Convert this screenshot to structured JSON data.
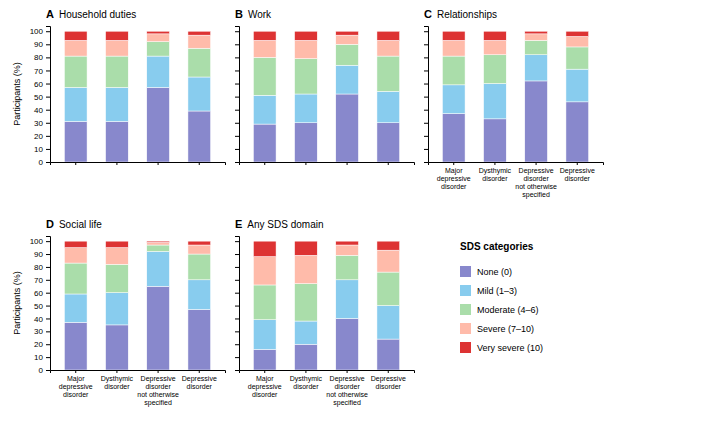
{
  "chart_data": [
    {
      "type": "bar",
      "stacked": true,
      "title": "Household duties",
      "annotations": [
        "A"
      ],
      "ylabel": "Participants (%)",
      "tick_labels": "y",
      "categories": [
        null,
        null,
        null,
        null
      ],
      "ylim": [
        0,
        104
      ],
      "yticks": [
        0,
        10,
        20,
        30,
        40,
        50,
        60,
        70,
        80,
        90,
        100
      ],
      "series": [
        {
          "name": "None (0)",
          "color": "#8888cc",
          "values": [
            31,
            31,
            57,
            39
          ]
        },
        {
          "name": "Mild (1–3)",
          "color": "#88ccee",
          "values": [
            26,
            26,
            24,
            26
          ]
        },
        {
          "name": "Moderate (4–6)",
          "color": "#aaddaa",
          "values": [
            24,
            24,
            11,
            22
          ]
        },
        {
          "name": "Severe (7–10)",
          "color": "#ffbbaa",
          "values": [
            12,
            12,
            6,
            10
          ]
        },
        {
          "name": "Very severe (10)",
          "color": "#dd3333",
          "values": [
            7,
            7,
            2,
            3
          ]
        }
      ]
    },
    {
      "type": "bar",
      "stacked": true,
      "title": "Work",
      "annotations": [
        "B"
      ],
      "tick_labels": false,
      "categories": [
        null,
        null,
        null,
        null
      ],
      "ylim": [
        0,
        104
      ],
      "yticks": [
        0,
        10,
        20,
        30,
        40,
        50,
        60,
        70,
        80,
        90,
        100
      ],
      "series": [
        {
          "name": "None (0)",
          "color": "#8888cc",
          "values": [
            29,
            30,
            52,
            30
          ]
        },
        {
          "name": "Mild (1–3)",
          "color": "#88ccee",
          "values": [
            22,
            22,
            22,
            24
          ]
        },
        {
          "name": "Moderate (4–6)",
          "color": "#aaddaa",
          "values": [
            29,
            27,
            16,
            27
          ]
        },
        {
          "name": "Severe (7–10)",
          "color": "#ffbbaa",
          "values": [
            13,
            14,
            7,
            12
          ]
        },
        {
          "name": "Very severe (10)",
          "color": "#dd3333",
          "values": [
            7,
            7,
            3,
            7
          ]
        }
      ]
    },
    {
      "type": "bar",
      "stacked": true,
      "title": "Relationships",
      "annotations": [
        "C"
      ],
      "tick_labels": "x",
      "categories": [
        "Major\ndepressive\ndisorder",
        "Dysthymic\ndisorder",
        "Depressive\ndisorder\nnot otherwise\nspecified",
        "Depressive\ndisorder"
      ],
      "ylim": [
        0,
        104
      ],
      "yticks": [
        0,
        10,
        20,
        30,
        40,
        50,
        60,
        70,
        80,
        90,
        100
      ],
      "series": [
        {
          "name": "None (0)",
          "color": "#8888cc",
          "values": [
            37,
            33,
            62,
            46
          ]
        },
        {
          "name": "Mild (1–3)",
          "color": "#88ccee",
          "values": [
            22,
            27,
            20,
            25
          ]
        },
        {
          "name": "Moderate (4–6)",
          "color": "#aaddaa",
          "values": [
            22,
            22,
            11,
            17
          ]
        },
        {
          "name": "Severe (7–10)",
          "color": "#ffbbaa",
          "values": [
            12,
            11,
            5,
            8
          ]
        },
        {
          "name": "Very severe (10)",
          "color": "#dd3333",
          "values": [
            7,
            7,
            2,
            4
          ]
        }
      ]
    },
    {
      "type": "bar",
      "stacked": true,
      "title": "Social life",
      "annotations": [
        "D"
      ],
      "ylabel": "Participants (%)",
      "categories": [
        "Major\ndepressive\ndisorder",
        "Dysthymic\ndisorder",
        "Depressive\ndisorder\nnot otherwise\nspecified",
        "Depressive\ndisorder"
      ],
      "ylim": [
        0,
        104
      ],
      "yticks": [
        0,
        10,
        20,
        30,
        40,
        50,
        60,
        70,
        80,
        90,
        100
      ],
      "series": [
        {
          "name": "None (0)",
          "color": "#8888cc",
          "values": [
            37,
            35,
            65,
            47
          ]
        },
        {
          "name": "Mild (1–3)",
          "color": "#88ccee",
          "values": [
            22,
            25,
            27,
            23
          ]
        },
        {
          "name": "Moderate (4–6)",
          "color": "#aaddaa",
          "values": [
            24,
            22,
            5,
            20
          ]
        },
        {
          "name": "Severe (7–10)",
          "color": "#ffbbaa",
          "values": [
            12,
            13,
            2,
            7
          ]
        },
        {
          "name": "Very severe (10)",
          "color": "#dd3333",
          "values": [
            5,
            5,
            1,
            3
          ]
        }
      ]
    },
    {
      "type": "bar",
      "stacked": true,
      "title": "Any SDS domain",
      "annotations": [
        "E",
        "SDS categories"
      ],
      "tick_labels": "x",
      "legend": "right",
      "categories": [
        "Major\ndepressive\ndisorder",
        "Dysthymic\ndisorder",
        "Depressive\ndisorder\nnot otherwise\nspecified",
        "Depressive\ndisorder"
      ],
      "ylim": [
        0,
        104
      ],
      "yticks": [
        0,
        10,
        20,
        30,
        40,
        50,
        60,
        70,
        80,
        90,
        100
      ],
      "series": [
        {
          "name": "None (0)",
          "color": "#8888cc",
          "values": [
            16,
            20,
            40,
            24
          ]
        },
        {
          "name": "Mild (1–3)",
          "color": "#88ccee",
          "values": [
            23,
            18,
            30,
            26
          ]
        },
        {
          "name": "Moderate (4–6)",
          "color": "#aaddaa",
          "values": [
            27,
            29,
            19,
            26
          ]
        },
        {
          "name": "Severe (7–10)",
          "color": "#ffbbaa",
          "values": [
            22,
            22,
            8,
            17
          ]
        },
        {
          "name": "Very severe (10)",
          "color": "#dd3333",
          "values": [
            12,
            11,
            3,
            7
          ]
        }
      ]
    }
  ]
}
